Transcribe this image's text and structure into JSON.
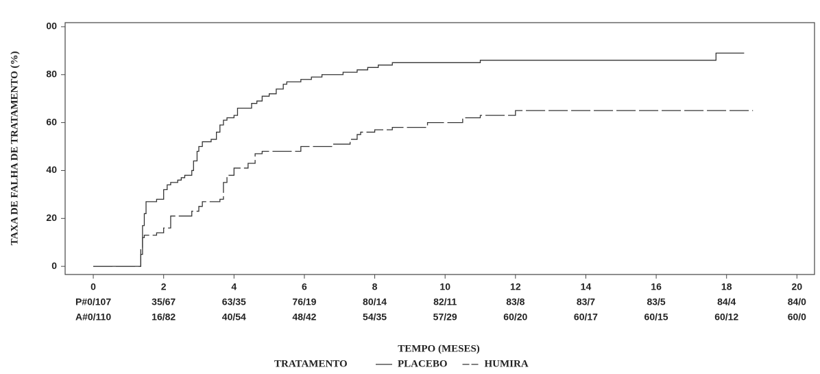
{
  "chart_data": {
    "type": "line",
    "step": true,
    "y_label": "TAXA DE FALHA DE TRATAMENTO (%)",
    "x_label": "TEMPO (MESES)",
    "legend_title": "TRATAMENTO",
    "xlim": [
      -0.8,
      20.5
    ],
    "xticks": [
      0,
      2,
      4,
      6,
      8,
      10,
      12,
      14,
      16,
      18,
      20
    ],
    "ylim": [
      -3.4,
      101.7
    ],
    "yticks": [
      0,
      20,
      40,
      60,
      80,
      {
        "value": 100,
        "label": "00"
      }
    ],
    "series": [
      {
        "name": "PLACEBO",
        "color": "#333333",
        "dash": false,
        "x": [
          0,
          1.3,
          1.35,
          1.4,
          1.45,
          1.5,
          1.8,
          2.0,
          2.1,
          2.2,
          2.4,
          2.5,
          2.6,
          2.8,
          2.85,
          2.95,
          3.0,
          3.1,
          3.35,
          3.5,
          3.6,
          3.7,
          3.8,
          4.0,
          4.1,
          4.5,
          4.65,
          4.8,
          5.0,
          5.2,
          5.4,
          5.5,
          5.9,
          6.2,
          6.5,
          7.1,
          7.5,
          7.8,
          8.1,
          8.5,
          11.0,
          17.7,
          18.5
        ],
        "values": [
          0,
          0,
          5,
          17,
          22,
          27,
          28,
          32,
          34,
          35,
          36,
          37,
          38,
          40,
          44,
          48,
          50,
          52,
          53,
          56,
          59,
          61,
          62,
          63,
          66,
          68,
          69,
          71,
          72,
          74,
          76,
          77,
          78,
          79,
          80,
          81,
          82,
          83,
          84,
          85,
          86,
          89,
          89
        ]
      },
      {
        "name": "HUMIRA",
        "color": "#333333",
        "dash": true,
        "x": [
          0,
          1.3,
          1.35,
          1.4,
          1.45,
          1.8,
          2.0,
          2.2,
          2.8,
          3.0,
          3.1,
          3.6,
          3.7,
          3.8,
          4.0,
          4.4,
          4.6,
          4.8,
          5.9,
          6.8,
          7.3,
          7.5,
          7.6,
          8.0,
          8.5,
          9.5,
          10.5,
          11.0,
          12.0,
          18.75
        ],
        "values": [
          0,
          0,
          7,
          12,
          13,
          14,
          16,
          21,
          23,
          25,
          27,
          28,
          35,
          38,
          41,
          43,
          47,
          48,
          50,
          51,
          53,
          55,
          56,
          57,
          58,
          60,
          62,
          63,
          65,
          65
        ]
      }
    ],
    "at_risk": [
      [
        "P#0/107",
        "35/67",
        "63/35",
        "76/19",
        "80/14",
        "82/11",
        "83/8",
        "83/7",
        "83/5",
        "84/4",
        "84/0"
      ],
      [
        "A#0/110",
        "16/82",
        "40/54",
        "48/42",
        "54/35",
        "57/29",
        "60/20",
        "60/17",
        "60/15",
        "60/12",
        "60/0"
      ]
    ]
  }
}
